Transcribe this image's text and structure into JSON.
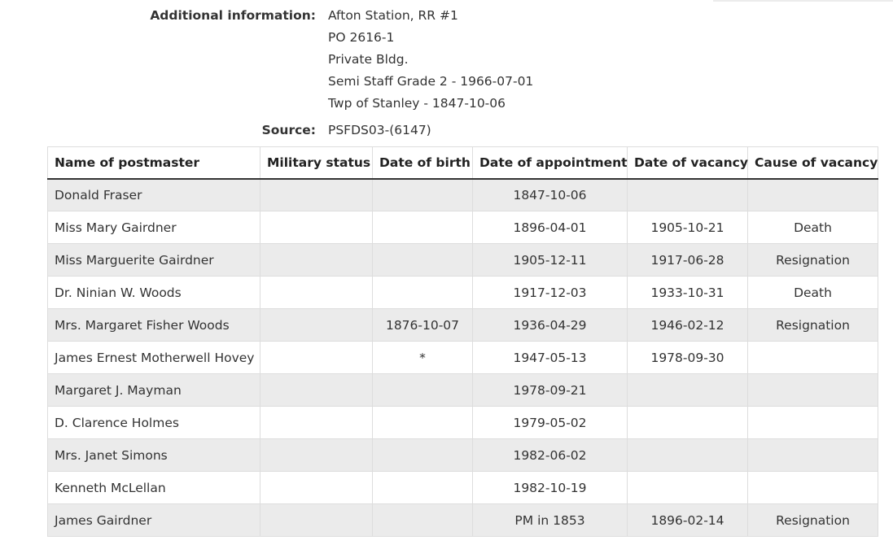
{
  "additional_info": {
    "label": "Additional information:",
    "lines": [
      "Afton Station, RR #1",
      "PO 2616-1",
      "Private Bldg.",
      "Semi Staff Grade 2 - 1966-07-01",
      "Twp of Stanley - 1847-10-06"
    ]
  },
  "source": {
    "label": "Source:",
    "value": "PSFDS03-(6147)"
  },
  "table": {
    "headers": [
      "Name of postmaster",
      "Military status",
      "Date of birth",
      "Date of appointment",
      "Date of vacancy",
      "Cause of vacancy"
    ],
    "rows": [
      [
        "Donald Fraser",
        "",
        "",
        "1847-10-06",
        "",
        ""
      ],
      [
        "Miss Mary Gairdner",
        "",
        "",
        "1896-04-01",
        "1905-10-21",
        "Death"
      ],
      [
        "Miss Marguerite Gairdner",
        "",
        "",
        "1905-12-11",
        "1917-06-28",
        "Resignation"
      ],
      [
        "Dr. Ninian W. Woods",
        "",
        "",
        "1917-12-03",
        "1933-10-31",
        "Death"
      ],
      [
        "Mrs. Margaret Fisher Woods",
        "",
        "1876-10-07",
        "1936-04-29",
        "1946-02-12",
        "Resignation"
      ],
      [
        "James Ernest Motherwell Hovey",
        "",
        "*",
        "1947-05-13",
        "1978-09-30",
        ""
      ],
      [
        "Margaret J. Mayman",
        "",
        "",
        "1978-09-21",
        "",
        ""
      ],
      [
        "D. Clarence Holmes",
        "",
        "",
        "1979-05-02",
        "",
        ""
      ],
      [
        "Mrs. Janet Simons",
        "",
        "",
        "1982-06-02",
        "",
        ""
      ],
      [
        "Kenneth McLellan",
        "",
        "",
        "1982-10-19",
        "",
        ""
      ],
      [
        "James Gairdner",
        "",
        "",
        "PM in 1853",
        "1896-02-14",
        "Resignation"
      ]
    ]
  }
}
